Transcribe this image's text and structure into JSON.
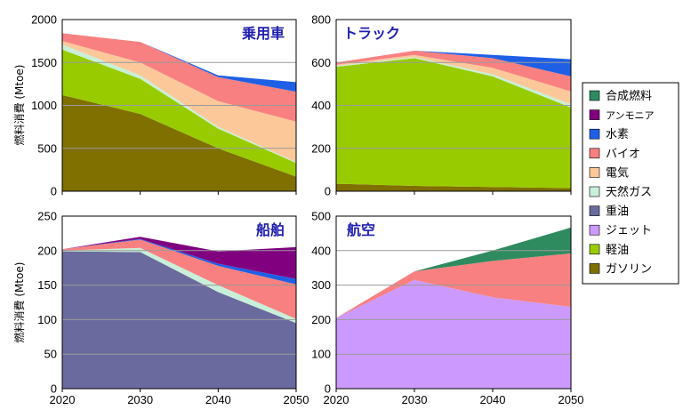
{
  "chart_data": [
    {
      "type": "area",
      "stacked": true,
      "title": "乗用車",
      "ylabel": "燃料消費 (Mtoe)",
      "x": [
        2020,
        2030,
        2040,
        2050
      ],
      "ylim": [
        0,
        2000
      ],
      "yticks": [
        0,
        500,
        1000,
        1500,
        2000
      ],
      "grid": true,
      "series": [
        {
          "name": "ガソリン",
          "values": [
            1120,
            900,
            500,
            170
          ]
        },
        {
          "name": "軽油",
          "values": [
            530,
            410,
            230,
            160
          ]
        },
        {
          "name": "天然ガス",
          "values": [
            60,
            40,
            20,
            10
          ]
        },
        {
          "name": "電気",
          "values": [
            40,
            150,
            300,
            470
          ]
        },
        {
          "name": "バイオ",
          "values": [
            90,
            240,
            280,
            350
          ]
        },
        {
          "name": "水素",
          "values": [
            0,
            0,
            20,
            110
          ]
        }
      ]
    },
    {
      "type": "area",
      "stacked": true,
      "title": "トラック",
      "ylabel": "",
      "x": [
        2020,
        2030,
        2040,
        2050
      ],
      "ylim": [
        0,
        800
      ],
      "yticks": [
        0,
        200,
        400,
        600,
        800
      ],
      "grid": true,
      "series": [
        {
          "name": "ガソリン",
          "values": [
            35,
            25,
            20,
            15
          ]
        },
        {
          "name": "軽油",
          "values": [
            545,
            595,
            515,
            375
          ]
        },
        {
          "name": "天然ガス",
          "values": [
            5,
            5,
            10,
            15
          ]
        },
        {
          "name": "電気",
          "values": [
            5,
            10,
            30,
            60
          ]
        },
        {
          "name": "バイオ",
          "values": [
            10,
            20,
            45,
            70
          ]
        },
        {
          "name": "水素",
          "values": [
            0,
            0,
            15,
            80
          ]
        }
      ]
    },
    {
      "type": "area",
      "stacked": true,
      "title": "船舶",
      "ylabel": "燃料消費 (Mtoe)",
      "x": [
        2020,
        2030,
        2040,
        2050
      ],
      "ylim": [
        0,
        250
      ],
      "yticks": [
        0,
        50,
        100,
        150,
        200,
        250
      ],
      "grid": true,
      "series": [
        {
          "name": "重油",
          "values": [
            199,
            198,
            140,
            95
          ]
        },
        {
          "name": "天然ガス",
          "values": [
            1,
            6,
            10,
            6
          ]
        },
        {
          "name": "バイオ",
          "values": [
            2,
            12,
            28,
            50
          ]
        },
        {
          "name": "水素",
          "values": [
            0,
            1,
            3,
            8
          ]
        },
        {
          "name": "アンモニア",
          "values": [
            0,
            3,
            18,
            46
          ]
        }
      ]
    },
    {
      "type": "area",
      "stacked": true,
      "title": "航空",
      "ylabel": "",
      "x": [
        2020,
        2030,
        2040,
        2050
      ],
      "ylim": [
        0,
        500
      ],
      "yticks": [
        0,
        100,
        200,
        300,
        400,
        500
      ],
      "grid": true,
      "series": [
        {
          "name": "ジェット",
          "values": [
            205,
            315,
            265,
            237
          ]
        },
        {
          "name": "バイオ",
          "values": [
            0,
            25,
            105,
            155
          ]
        },
        {
          "name": "合成燃料",
          "values": [
            0,
            0,
            30,
            75
          ]
        }
      ]
    }
  ],
  "legend": {
    "placement": "right",
    "items": [
      {
        "name": "合成燃料",
        "color": "#2e8b60"
      },
      {
        "name": "アンモニア",
        "color": "#800080"
      },
      {
        "name": "水素",
        "color": "#1f5fe6"
      },
      {
        "name": "バイオ",
        "color": "#f88080"
      },
      {
        "name": "電気",
        "color": "#fcc89a"
      },
      {
        "name": "天然ガス",
        "color": "#c8f0d8"
      },
      {
        "name": "重油",
        "color": "#6a6a9e"
      },
      {
        "name": "ジェット",
        "color": "#cc99ff"
      },
      {
        "name": "軽油",
        "color": "#99cc00"
      },
      {
        "name": "ガソリン",
        "color": "#807000"
      }
    ]
  },
  "colors": {
    "合成燃料": "#2e8b60",
    "アンモニア": "#800080",
    "水素": "#1f5fe6",
    "バイオ": "#f88080",
    "電気": "#fcc89a",
    "天然ガス": "#c8f0d8",
    "重油": "#6a6a9e",
    "ジェット": "#cc99ff",
    "軽油": "#99cc00",
    "ガソリン": "#807000"
  }
}
